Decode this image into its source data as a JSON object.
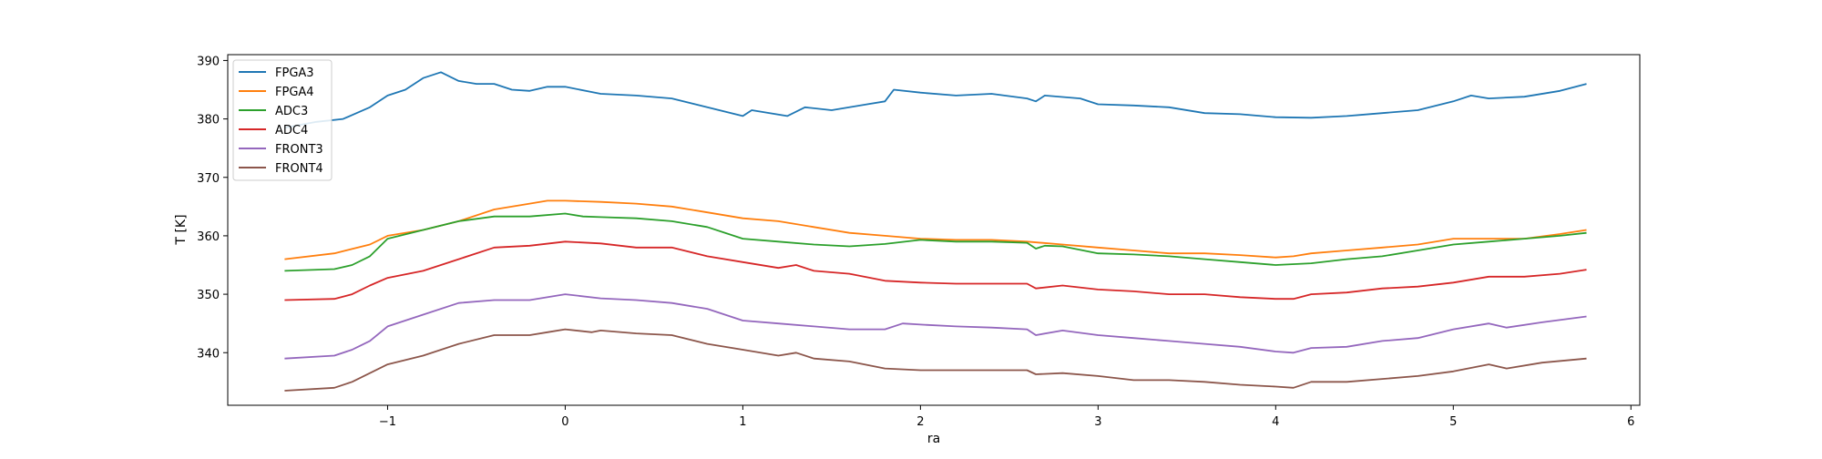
{
  "chart_data": {
    "type": "line",
    "title": "",
    "xlabel": "ra",
    "ylabel": "T [K]",
    "xlim": [
      -1.9,
      6.05
    ],
    "ylim": [
      331,
      391
    ],
    "xticks": [
      -1,
      0,
      1,
      2,
      3,
      4,
      5,
      6
    ],
    "xtick_labels": [
      "−1",
      "0",
      "1",
      "2",
      "3",
      "4",
      "5",
      "6"
    ],
    "yticks": [
      340,
      350,
      360,
      370,
      380,
      390
    ],
    "ytick_labels": [
      "340",
      "350",
      "360",
      "370",
      "380",
      "390"
    ],
    "grid": false,
    "legend": "top-left",
    "series": [
      {
        "name": "FPGA3",
        "color": "#1f77b4",
        "x": [
          -1.58,
          -1.4,
          -1.25,
          -1.1,
          -1.0,
          -0.9,
          -0.8,
          -0.7,
          -0.6,
          -0.5,
          -0.4,
          -0.3,
          -0.2,
          -0.1,
          0.0,
          0.2,
          0.4,
          0.6,
          0.8,
          1.0,
          1.05,
          1.25,
          1.35,
          1.5,
          1.7,
          1.8,
          1.85,
          2.0,
          2.2,
          2.4,
          2.6,
          2.65,
          2.7,
          2.9,
          3.0,
          3.2,
          3.4,
          3.6,
          3.8,
          4.0,
          4.2,
          4.4,
          4.6,
          4.8,
          5.0,
          5.1,
          5.2,
          5.4,
          5.6,
          5.75
        ],
        "y": [
          378.5,
          379.5,
          380.0,
          382.0,
          384.0,
          385.0,
          387.0,
          388.0,
          386.5,
          386.0,
          386.0,
          385.0,
          384.8,
          385.5,
          385.5,
          384.3,
          384.0,
          383.5,
          382.0,
          380.5,
          381.5,
          380.5,
          382.0,
          381.5,
          382.5,
          383.0,
          385.0,
          384.5,
          384.0,
          384.3,
          383.5,
          383.0,
          384.0,
          383.5,
          382.5,
          382.3,
          382.0,
          381.0,
          380.8,
          380.3,
          380.2,
          380.5,
          381.0,
          381.5,
          383.0,
          384.0,
          383.5,
          383.8,
          384.8,
          386.0
        ]
      },
      {
        "name": "FPGA4",
        "color": "#ff7f0e",
        "x": [
          -1.58,
          -1.3,
          -1.1,
          -1.0,
          -0.8,
          -0.6,
          -0.4,
          -0.2,
          -0.1,
          0.0,
          0.2,
          0.4,
          0.6,
          0.8,
          1.0,
          1.2,
          1.4,
          1.6,
          1.8,
          2.0,
          2.2,
          2.4,
          2.6,
          2.8,
          3.0,
          3.2,
          3.4,
          3.6,
          3.8,
          4.0,
          4.1,
          4.2,
          4.4,
          4.6,
          4.8,
          5.0,
          5.2,
          5.4,
          5.6,
          5.75
        ],
        "y": [
          356.0,
          357.0,
          358.5,
          360.0,
          361.0,
          362.5,
          364.5,
          365.5,
          366.0,
          366.0,
          365.8,
          365.5,
          365.0,
          364.0,
          363.0,
          362.5,
          361.5,
          360.5,
          360.0,
          359.5,
          359.3,
          359.3,
          359.0,
          358.5,
          358.0,
          357.5,
          357.0,
          357.0,
          356.7,
          356.3,
          356.5,
          357.0,
          357.5,
          358.0,
          358.5,
          359.5,
          359.5,
          359.5,
          360.3,
          361.0
        ]
      },
      {
        "name": "ADC3",
        "color": "#2ca02c",
        "x": [
          -1.58,
          -1.3,
          -1.2,
          -1.1,
          -1.0,
          -0.8,
          -0.6,
          -0.4,
          -0.2,
          0.0,
          0.1,
          0.2,
          0.4,
          0.6,
          0.8,
          1.0,
          1.2,
          1.4,
          1.6,
          1.8,
          2.0,
          2.2,
          2.4,
          2.6,
          2.65,
          2.7,
          2.8,
          3.0,
          3.2,
          3.4,
          3.6,
          3.8,
          4.0,
          4.2,
          4.4,
          4.6,
          4.8,
          5.0,
          5.2,
          5.4,
          5.6,
          5.75
        ],
        "y": [
          354.0,
          354.3,
          355.0,
          356.5,
          359.5,
          361.0,
          362.5,
          363.3,
          363.3,
          363.8,
          363.3,
          363.2,
          363.0,
          362.5,
          361.5,
          359.5,
          359.0,
          358.5,
          358.2,
          358.6,
          359.3,
          359.0,
          359.0,
          358.8,
          357.8,
          358.3,
          358.2,
          357.0,
          356.8,
          356.5,
          356.0,
          355.5,
          355.0,
          355.3,
          356.0,
          356.5,
          357.5,
          358.5,
          359.0,
          359.5,
          360.0,
          360.5
        ]
      },
      {
        "name": "ADC4",
        "color": "#d62728",
        "x": [
          -1.58,
          -1.3,
          -1.2,
          -1.1,
          -1.0,
          -0.8,
          -0.6,
          -0.4,
          -0.2,
          0.0,
          0.2,
          0.4,
          0.6,
          0.8,
          1.0,
          1.2,
          1.3,
          1.4,
          1.6,
          1.8,
          2.0,
          2.2,
          2.4,
          2.6,
          2.65,
          2.8,
          3.0,
          3.2,
          3.4,
          3.6,
          3.8,
          4.0,
          4.1,
          4.2,
          4.4,
          4.6,
          4.8,
          5.0,
          5.2,
          5.4,
          5.6,
          5.75
        ],
        "y": [
          349.0,
          349.2,
          350.0,
          351.5,
          352.8,
          354.0,
          356.0,
          358.0,
          358.3,
          359.0,
          358.7,
          358.0,
          358.0,
          356.5,
          355.5,
          354.5,
          355.0,
          354.0,
          353.5,
          352.3,
          352.0,
          351.8,
          351.8,
          351.8,
          351.0,
          351.5,
          350.8,
          350.5,
          350.0,
          350.0,
          349.5,
          349.2,
          349.2,
          350.0,
          350.3,
          351.0,
          351.3,
          352.0,
          353.0,
          353.0,
          353.5,
          354.2
        ]
      },
      {
        "name": "FRONT3",
        "color": "#9467bd",
        "x": [
          -1.58,
          -1.3,
          -1.2,
          -1.1,
          -1.0,
          -0.8,
          -0.6,
          -0.4,
          -0.2,
          0.0,
          0.2,
          0.4,
          0.6,
          0.8,
          1.0,
          1.2,
          1.4,
          1.6,
          1.8,
          1.9,
          2.0,
          2.2,
          2.4,
          2.6,
          2.65,
          2.8,
          3.0,
          3.2,
          3.4,
          3.6,
          3.8,
          4.0,
          4.1,
          4.2,
          4.4,
          4.6,
          4.8,
          5.0,
          5.2,
          5.3,
          5.5,
          5.75
        ],
        "y": [
          339.0,
          339.5,
          340.5,
          342.0,
          344.5,
          346.5,
          348.5,
          349.0,
          349.0,
          350.0,
          349.3,
          349.0,
          348.5,
          347.5,
          345.5,
          345.0,
          344.5,
          344.0,
          344.0,
          345.0,
          344.8,
          344.5,
          344.3,
          344.0,
          343.0,
          343.8,
          343.0,
          342.5,
          342.0,
          341.5,
          341.0,
          340.2,
          340.0,
          340.8,
          341.0,
          342.0,
          342.5,
          344.0,
          345.0,
          344.3,
          345.2,
          346.2
        ]
      },
      {
        "name": "FRONT4",
        "color": "#8c564b",
        "x": [
          -1.58,
          -1.3,
          -1.2,
          -1.1,
          -1.0,
          -0.8,
          -0.6,
          -0.4,
          -0.2,
          -0.1,
          0.0,
          0.15,
          0.2,
          0.4,
          0.6,
          0.8,
          1.0,
          1.2,
          1.3,
          1.4,
          1.6,
          1.8,
          2.0,
          2.2,
          2.4,
          2.6,
          2.65,
          2.8,
          3.0,
          3.2,
          3.4,
          3.6,
          3.8,
          4.0,
          4.1,
          4.2,
          4.4,
          4.6,
          4.8,
          5.0,
          5.2,
          5.3,
          5.5,
          5.75
        ],
        "y": [
          333.5,
          334.0,
          335.0,
          336.5,
          338.0,
          339.5,
          341.5,
          343.0,
          343.0,
          343.5,
          344.0,
          343.5,
          343.8,
          343.3,
          343.0,
          341.5,
          340.5,
          339.5,
          340.0,
          339.0,
          338.5,
          337.3,
          337.0,
          337.0,
          337.0,
          337.0,
          336.3,
          336.5,
          336.0,
          335.3,
          335.3,
          335.0,
          334.5,
          334.2,
          334.0,
          335.0,
          335.0,
          335.5,
          336.0,
          336.8,
          338.0,
          337.3,
          338.3,
          339.0
        ]
      }
    ]
  }
}
